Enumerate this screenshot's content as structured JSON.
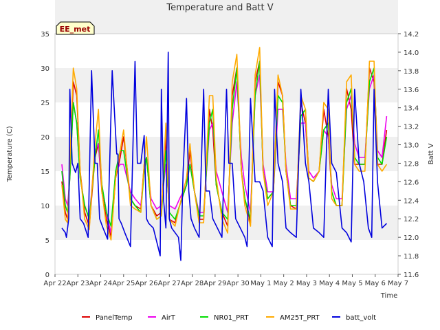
{
  "chart_data": {
    "type": "line",
    "title": "Temperature and Batt V",
    "xlabel": "Time",
    "ylabel": "Temperature (C)",
    "y2label": "Batt V",
    "station_tag": "EE_met",
    "x_ticks": [
      "Apr 22",
      "Apr 23",
      "Apr 24",
      "Apr 25",
      "Apr 26",
      "Apr 27",
      "Apr 28",
      "Apr 29",
      "Apr 30",
      "May 1",
      "May 2",
      "May 3",
      "May 4",
      "May 5",
      "May 6",
      "May 7"
    ],
    "y_ticks": [
      "0",
      "5",
      "10",
      "15",
      "20",
      "25",
      "30",
      "35"
    ],
    "y2_ticks": [
      "11.6",
      "11.8",
      "12.0",
      "12.2",
      "12.4",
      "12.6",
      "12.8",
      "13.0",
      "13.2",
      "13.4",
      "13.6",
      "13.8",
      "14.0",
      "14.2"
    ],
    "ylim": [
      0,
      35
    ],
    "y2lim": [
      11.6,
      14.2
    ],
    "x_day_range": [
      0,
      15
    ],
    "grid": "horizontal bands",
    "legend_position": "bottom",
    "series": [
      {
        "name": "PanelTemp",
        "color": "#dd0000",
        "axis": "left",
        "x": [
          0.3,
          0.45,
          0.55,
          0.65,
          0.8,
          0.95,
          1.1,
          1.3,
          1.5,
          1.75,
          1.9,
          2.05,
          2.25,
          2.45,
          2.65,
          2.85,
          3.0,
          3.3,
          3.5,
          3.75,
          3.9,
          4.0,
          4.2,
          4.45,
          4.65,
          4.85,
          5.0,
          5.25,
          5.45,
          5.75,
          5.9,
          6.1,
          6.3,
          6.5,
          6.75,
          6.9,
          7.05,
          7.3,
          7.55,
          7.75,
          7.95,
          8.15,
          8.3,
          8.55,
          8.75,
          8.95,
          9.1,
          9.3,
          9.55,
          9.75,
          9.95,
          10.1,
          10.3,
          10.55,
          10.75,
          10.95,
          11.1,
          11.3,
          11.55,
          11.75,
          11.95,
          12.1,
          12.3,
          12.55,
          12.75,
          12.95,
          13.1,
          13.3,
          13.55,
          13.75,
          13.95,
          14.1,
          14.3,
          14.5
        ],
        "y": [
          13.5,
          9,
          8,
          15,
          28,
          26,
          15,
          9,
          7,
          17,
          19,
          12,
          8,
          5.5,
          14,
          17,
          20,
          11,
          10,
          9.5,
          16,
          17,
          10,
          8.5,
          9,
          20,
          8,
          7.5,
          10,
          13,
          18,
          12,
          8,
          8,
          24,
          21,
          13,
          9,
          7,
          26,
          30,
          15,
          11,
          7.5,
          28,
          31,
          15,
          11,
          12,
          28,
          26,
          15,
          10,
          9.5,
          25,
          22,
          14,
          13.5,
          15,
          24,
          20,
          12,
          10,
          10,
          27,
          24,
          16,
          16,
          16,
          30,
          28,
          16,
          16,
          21
        ]
      },
      {
        "name": "AirT",
        "color": "#ee00ee",
        "axis": "left",
        "x": [
          0.3,
          0.45,
          0.55,
          0.65,
          0.8,
          0.95,
          1.1,
          1.3,
          1.5,
          1.75,
          1.9,
          2.05,
          2.25,
          2.45,
          2.65,
          2.85,
          3.0,
          3.3,
          3.5,
          3.75,
          3.9,
          4.0,
          4.2,
          4.45,
          4.65,
          4.85,
          5.0,
          5.25,
          5.45,
          5.75,
          5.9,
          6.1,
          6.3,
          6.5,
          6.75,
          6.9,
          7.05,
          7.3,
          7.55,
          7.75,
          7.95,
          8.15,
          8.3,
          8.55,
          8.75,
          8.95,
          9.1,
          9.3,
          9.55,
          9.75,
          9.95,
          10.1,
          10.3,
          10.55,
          10.75,
          10.95,
          11.1,
          11.3,
          11.55,
          11.75,
          11.95,
          12.1,
          12.3,
          12.55,
          12.75,
          12.95,
          13.1,
          13.3,
          13.55,
          13.75,
          13.95,
          14.1,
          14.3,
          14.5
        ],
        "y": [
          16,
          11,
          10,
          14,
          25,
          22,
          14,
          10,
          8,
          18,
          19,
          13,
          9,
          6,
          15,
          16,
          16,
          12,
          11,
          10,
          15,
          17,
          11,
          9.5,
          10,
          16,
          10,
          9.5,
          11,
          13,
          16,
          12,
          9,
          9,
          21,
          22,
          15,
          12,
          9,
          22,
          28,
          17,
          13,
          9,
          26,
          29,
          16,
          12,
          12,
          24,
          24,
          16,
          11,
          11,
          22,
          22,
          15,
          14,
          15,
          21,
          20,
          13,
          11,
          11,
          24,
          26,
          19,
          17,
          17,
          27,
          29,
          18,
          17,
          23
        ]
      },
      {
        "name": "NR01_PRT",
        "color": "#00dd00",
        "axis": "left",
        "x": [
          0.3,
          0.45,
          0.55,
          0.65,
          0.8,
          0.95,
          1.1,
          1.3,
          1.5,
          1.75,
          1.9,
          2.05,
          2.25,
          2.45,
          2.65,
          2.85,
          3.0,
          3.3,
          3.5,
          3.75,
          3.9,
          4.0,
          4.2,
          4.45,
          4.65,
          4.85,
          5.0,
          5.25,
          5.45,
          5.75,
          5.9,
          6.1,
          6.3,
          6.5,
          6.75,
          6.9,
          7.05,
          7.3,
          7.55,
          7.75,
          7.95,
          8.15,
          8.3,
          8.55,
          8.75,
          8.95,
          9.1,
          9.3,
          9.55,
          9.75,
          9.95,
          10.1,
          10.3,
          10.55,
          10.75,
          10.95,
          11.1,
          11.3,
          11.55,
          11.75,
          11.95,
          12.1,
          12.3,
          12.55,
          12.75,
          12.95,
          13.1,
          13.3,
          13.55,
          13.75,
          13.95,
          14.1,
          14.3,
          14.5
        ],
        "y": [
          15,
          10,
          9,
          14,
          25,
          22,
          14,
          10,
          8,
          17,
          21,
          13,
          9,
          7,
          15,
          18,
          18,
          11,
          10,
          9,
          15,
          17,
          10,
          8,
          8.5,
          18,
          9,
          8,
          10,
          13,
          16,
          12,
          8.5,
          8.5,
          22,
          24,
          13,
          9,
          8,
          24,
          30,
          15,
          11,
          8,
          26,
          31,
          15,
          11,
          12,
          26,
          25,
          15,
          10,
          10,
          23,
          24,
          14,
          13.5,
          15,
          21,
          22,
          12,
          10,
          10,
          25,
          27,
          17,
          16,
          16,
          28,
          30,
          17,
          16,
          20
        ]
      },
      {
        "name": "AM25T_PRT",
        "color": "#ffaa00",
        "axis": "left",
        "x": [
          0.3,
          0.45,
          0.55,
          0.65,
          0.8,
          0.95,
          1.1,
          1.3,
          1.5,
          1.75,
          1.9,
          2.05,
          2.25,
          2.45,
          2.65,
          2.85,
          3.0,
          3.3,
          3.5,
          3.75,
          3.9,
          4.0,
          4.2,
          4.45,
          4.65,
          4.85,
          5.0,
          5.25,
          5.45,
          5.75,
          5.9,
          6.1,
          6.3,
          6.5,
          6.75,
          6.9,
          7.05,
          7.3,
          7.55,
          7.75,
          7.95,
          8.15,
          8.3,
          8.55,
          8.75,
          8.95,
          9.1,
          9.3,
          9.55,
          9.75,
          9.95,
          10.1,
          10.3,
          10.55,
          10.75,
          10.95,
          11.1,
          11.3,
          11.55,
          11.75,
          11.95,
          12.1,
          12.3,
          12.55,
          12.75,
          12.95,
          13.1,
          13.3,
          13.55,
          13.75,
          13.95,
          14.1,
          14.3,
          14.5
        ],
        "y": [
          13,
          8,
          7.5,
          16,
          30,
          27,
          15,
          8,
          6.5,
          19,
          24,
          12,
          7,
          5,
          14,
          18,
          21,
          10,
          9.5,
          9,
          16,
          20,
          10,
          8,
          8.5,
          22,
          8,
          7,
          10,
          14,
          19,
          12,
          7.5,
          7.5,
          26,
          26,
          14,
          8,
          6,
          28,
          32,
          15,
          10,
          7,
          29,
          33,
          15,
          10,
          12,
          29,
          26,
          15,
          9.5,
          9.5,
          26,
          24,
          14,
          13.5,
          15,
          25,
          24,
          11,
          10,
          10,
          28,
          29,
          16,
          15,
          15,
          31,
          31,
          16,
          15,
          16
        ]
      },
      {
        "name": "batt_volt",
        "color": "#0000dd",
        "axis": "right",
        "x": [
          0.3,
          0.45,
          0.5,
          0.6,
          0.65,
          0.75,
          0.9,
          1.0,
          1.1,
          1.25,
          1.45,
          1.6,
          1.75,
          1.85,
          1.95,
          2.1,
          2.3,
          2.5,
          2.7,
          2.75,
          2.8,
          2.9,
          3.05,
          3.3,
          3.5,
          3.6,
          3.75,
          3.9,
          4.0,
          4.1,
          4.3,
          4.5,
          4.6,
          4.65,
          4.75,
          4.85,
          4.95,
          5.0,
          5.1,
          5.4,
          5.5,
          5.6,
          5.75,
          5.85,
          5.95,
          6.1,
          6.3,
          6.5,
          6.6,
          6.75,
          6.9,
          7.1,
          7.3,
          7.5,
          7.6,
          7.75,
          7.9,
          8.1,
          8.3,
          8.4,
          8.55,
          8.75,
          8.95,
          9.1,
          9.3,
          9.5,
          9.6,
          9.75,
          9.95,
          10.1,
          10.3,
          10.55,
          10.75,
          10.95,
          11.1,
          11.3,
          11.55,
          11.75,
          11.95,
          12.1,
          12.3,
          12.55,
          12.75,
          12.95,
          13.1,
          13.3,
          13.5,
          13.7,
          13.85,
          13.95,
          14.1,
          14.3,
          14.5
        ],
        "y": [
          12.1,
          12.05,
          12.0,
          12.2,
          13.6,
          12.8,
          12.7,
          12.8,
          12.2,
          12.15,
          12.0,
          13.8,
          12.8,
          12.8,
          12.2,
          12.1,
          11.98,
          13.8,
          12.9,
          12.9,
          12.2,
          12.15,
          12.05,
          11.9,
          13.9,
          12.8,
          12.8,
          13.1,
          12.2,
          12.15,
          12.1,
          11.9,
          11.8,
          13.6,
          12.4,
          12.1,
          14.0,
          12.2,
          12.1,
          12.0,
          11.75,
          12.7,
          13.5,
          12.5,
          12.2,
          12.1,
          12.0,
          13.6,
          12.5,
          12.5,
          12.2,
          12.1,
          12.0,
          13.6,
          12.8,
          12.8,
          12.2,
          12.1,
          12.0,
          11.9,
          13.5,
          12.6,
          12.6,
          12.5,
          12.0,
          11.9,
          13.6,
          12.8,
          12.6,
          12.1,
          12.05,
          12.0,
          13.6,
          12.8,
          12.6,
          12.1,
          12.05,
          12.0,
          13.6,
          12.8,
          12.7,
          12.1,
          12.05,
          11.95,
          13.6,
          12.8,
          12.6,
          12.1,
          12.0,
          13.6,
          12.6,
          12.1,
          12.15
        ]
      }
    ]
  }
}
